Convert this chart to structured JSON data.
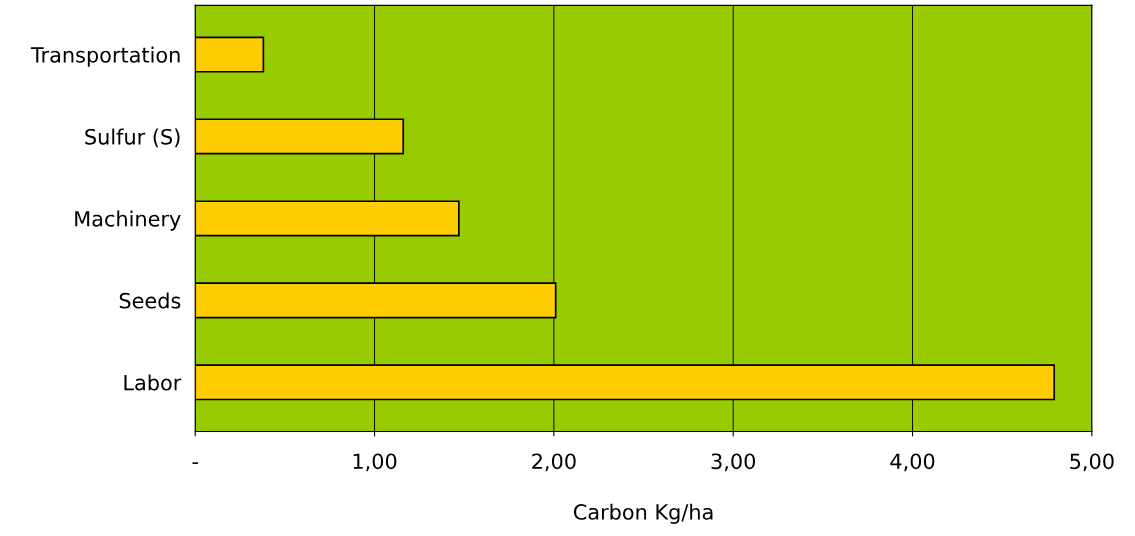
{
  "chart_data": {
    "type": "bar",
    "orientation": "horizontal",
    "xlabel": "Carbon Kg/ha",
    "categories": [
      "Transportation",
      "Sulfur (S)",
      "Machinery",
      "Seeds",
      "Labor"
    ],
    "values": [
      0.38,
      1.16,
      1.47,
      2.01,
      4.79
    ],
    "color": "#ffcc00",
    "xlim": [
      0,
      5
    ],
    "xticks": [
      {
        "value": 0,
        "label": "-"
      },
      {
        "value": 1,
        "label": "1,00"
      },
      {
        "value": 2,
        "label": "2,00"
      },
      {
        "value": 3,
        "label": "3,00"
      },
      {
        "value": 4,
        "label": "4,00"
      },
      {
        "value": 5,
        "label": "5,00"
      }
    ],
    "grid": "x"
  }
}
